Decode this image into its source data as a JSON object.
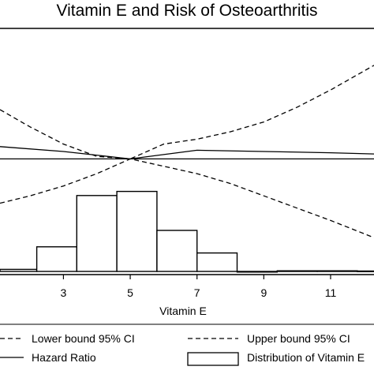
{
  "chart_data": {
    "type": "line",
    "title": "Vitamin E and Risk of Osteoarthritis",
    "xlabel": "Vitamin E",
    "ylabel": "",
    "x_ticks": [
      3,
      5,
      7,
      9,
      11
    ],
    "xlim": [
      1.1,
      12.3
    ],
    "grid": false,
    "legend_placement": "bottom",
    "series": [
      {
        "name": "Lower bound 95% CI",
        "style": "dashed",
        "x": [
          1.1,
          2.0,
          3.0,
          4.0,
          5.0,
          6.0,
          7.0,
          8.0,
          9.0,
          10.0,
          11.0,
          12.3
        ],
        "y": [
          0.74,
          0.77,
          0.81,
          0.86,
          0.92,
          0.89,
          0.86,
          0.82,
          0.77,
          0.72,
          0.67,
          0.6
        ]
      },
      {
        "name": "Upper bound 95% CI",
        "style": "dashed",
        "x": [
          1.1,
          2.0,
          3.0,
          4.0,
          5.0,
          6.0,
          7.0,
          8.0,
          9.0,
          10.0,
          11.0,
          12.3
        ],
        "y": [
          1.12,
          1.05,
          0.98,
          0.93,
          0.92,
          0.98,
          1.0,
          1.03,
          1.07,
          1.13,
          1.2,
          1.3
        ]
      },
      {
        "name": "Hazard Ratio",
        "style": "solid",
        "x": [
          1.1,
          3.0,
          5.0,
          7.0,
          9.0,
          11.0,
          12.3
        ],
        "y": [
          0.97,
          0.95,
          0.92,
          0.955,
          0.95,
          0.945,
          0.94
        ]
      },
      {
        "name": "Reference",
        "style": "solid",
        "show_in_legend": false,
        "x": [
          1.1,
          12.3
        ],
        "y": [
          0.92,
          0.92
        ]
      }
    ],
    "histogram": {
      "name": "Distribution of Vitamin E",
      "bins": [
        {
          "x0": 1.1,
          "x1": 2.2,
          "count": 1
        },
        {
          "x0": 2.2,
          "x1": 3.4,
          "count": 12
        },
        {
          "x0": 3.4,
          "x1": 4.6,
          "count": 37
        },
        {
          "x0": 4.6,
          "x1": 5.8,
          "count": 39
        },
        {
          "x0": 5.8,
          "x1": 7.0,
          "count": 20
        },
        {
          "x0": 7.0,
          "x1": 8.2,
          "count": 9
        },
        {
          "x0": 8.2,
          "x1": 9.4,
          "count": 0
        },
        {
          "x0": 9.4,
          "x1": 10.6,
          "count": 0.3
        },
        {
          "x0": 10.6,
          "x1": 11.8,
          "count": 0.3
        },
        {
          "x0": 11.8,
          "x1": 12.3,
          "count": 0.2
        }
      ]
    }
  }
}
